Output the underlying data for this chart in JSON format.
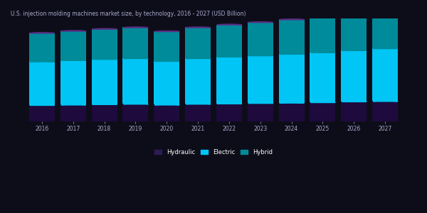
{
  "years": [
    2016,
    2017,
    2018,
    2019,
    2020,
    2021,
    2022,
    2023,
    2024,
    2025,
    2026,
    2027
  ],
  "hydraulic": [
    0.42,
    0.43,
    0.44,
    0.45,
    0.43,
    0.45,
    0.46,
    0.47,
    0.48,
    0.49,
    0.51,
    0.52
  ],
  "electric": [
    1.1,
    1.12,
    1.14,
    1.15,
    1.1,
    1.15,
    1.18,
    1.2,
    1.23,
    1.26,
    1.29,
    1.33
  ],
  "hybrid": [
    0.72,
    0.74,
    0.76,
    0.78,
    0.75,
    0.78,
    0.81,
    0.84,
    0.87,
    0.9,
    0.94,
    0.98
  ],
  "colors": {
    "hydraulic": "#1e0a3c",
    "electric": "#00c5f5",
    "hybrid": "#008b9a"
  },
  "title": "U.S. injection molding machines market size, by technology, 2016 - 2027 (USD Billion)",
  "title_color": "#cccccc",
  "background_color": "#0d0d1a",
  "bar_width": 0.82,
  "ylim": [
    0,
    2.6
  ],
  "legend_labels": [
    "Hydraulic",
    "Electric",
    "Hybrid"
  ],
  "legend_colors": [
    "#2d1b55",
    "#00c5f5",
    "#008b9a"
  ]
}
